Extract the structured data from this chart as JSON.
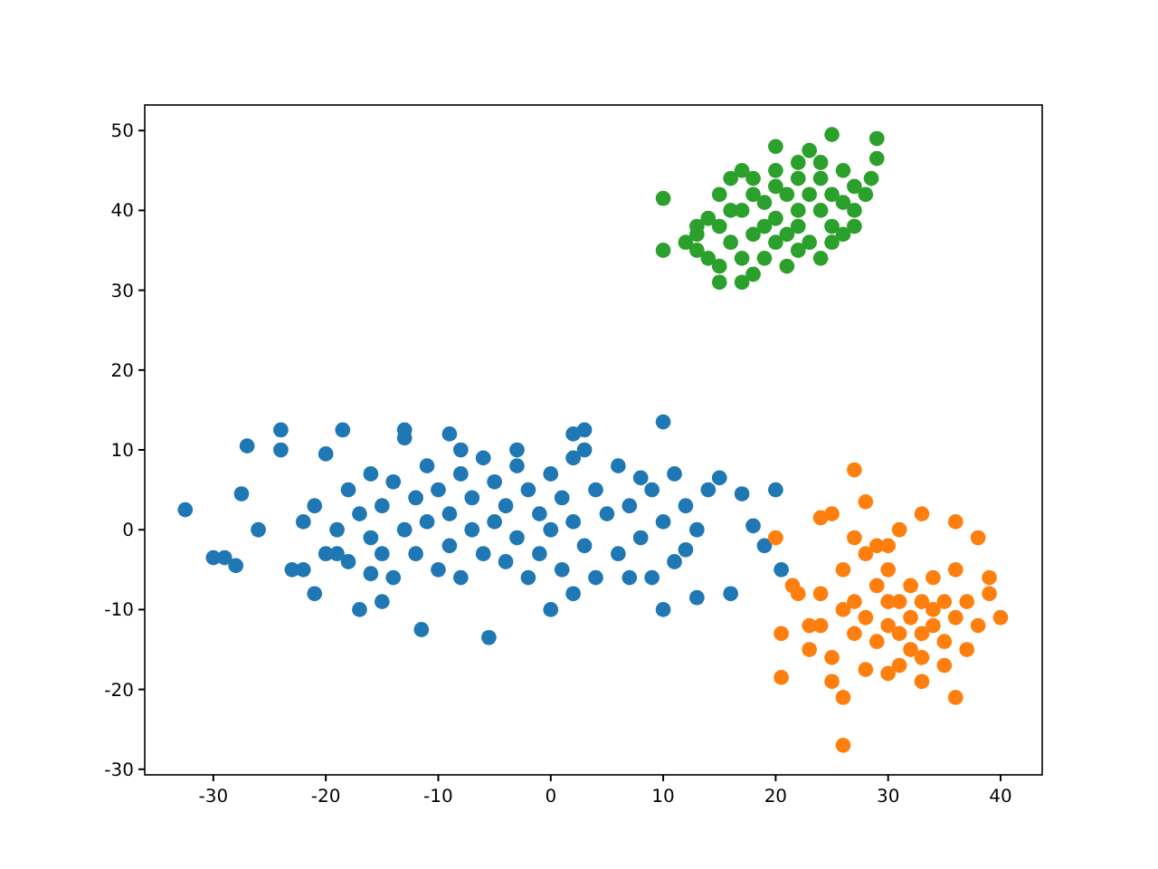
{
  "chart_data": {
    "type": "scatter",
    "xlim": [
      -36.1,
      43.7
    ],
    "ylim": [
      -30.7,
      53.2
    ],
    "xticks": [
      -30,
      -20,
      -10,
      0,
      10,
      20,
      30,
      40
    ],
    "yticks": [
      -30,
      -20,
      -10,
      0,
      10,
      20,
      30,
      40,
      50
    ],
    "marker": "circle",
    "grid": false,
    "series": [
      {
        "color": "#1f77b4",
        "x": [
          -32.5,
          -30,
          -29,
          -28,
          -27.5,
          -27,
          -26,
          -24,
          -24,
          -23,
          -22,
          -21,
          -20,
          -19,
          -18.5,
          -17,
          -16,
          -15,
          -13,
          -13,
          -11.5,
          -9,
          -5.5,
          0,
          2,
          3,
          2,
          10,
          10,
          13,
          16,
          15,
          17,
          18,
          19,
          20,
          20.5,
          14,
          12,
          8,
          9,
          -18,
          -17,
          -16,
          -15,
          -14,
          -13,
          -12,
          -12,
          -11,
          -11,
          -10,
          -10,
          -9,
          -9,
          -8,
          -8,
          -7,
          -7,
          -6,
          -6,
          -5,
          -5,
          -4,
          -4,
          -3,
          -3,
          -2,
          -2,
          -1,
          -1,
          0,
          0,
          1,
          1,
          2,
          2,
          3,
          4,
          4,
          5,
          6,
          6,
          7,
          8,
          9,
          10,
          11,
          12,
          -19,
          -20,
          -21,
          -16,
          -14,
          -8,
          -3,
          3,
          7,
          -15,
          11,
          13,
          -22,
          -18
        ],
        "values": [
          2.5,
          -3.5,
          -3.5,
          -4.5,
          4.5,
          10.5,
          0,
          12.5,
          10,
          -5,
          -5,
          -8,
          9.5,
          -3,
          12.5,
          -10,
          -5.5,
          -9,
          12.5,
          11.5,
          -12.5,
          12,
          -13.5,
          -10,
          -8,
          12.5,
          12,
          13.5,
          -10,
          -8.5,
          -8,
          6.5,
          4.5,
          0.5,
          -2,
          5,
          -5,
          5,
          -2.5,
          6.5,
          -6,
          5,
          2,
          -1,
          3,
          6,
          0,
          -3,
          4,
          8,
          1,
          -5,
          5,
          2,
          -2,
          7,
          -6,
          4,
          0,
          -3,
          9,
          6,
          1,
          -4,
          3,
          8,
          -1,
          5,
          -6,
          2,
          -3,
          7,
          0,
          4,
          -5,
          1,
          9,
          -2,
          5,
          -6,
          2,
          -3,
          8,
          3,
          -1,
          5,
          1,
          -4,
          3,
          0,
          -3,
          3,
          7,
          -6,
          10,
          10,
          10,
          -6,
          -3,
          7,
          0,
          1,
          -4
        ]
      },
      {
        "color": "#ff7f0e",
        "x": [
          20,
          20.5,
          20.5,
          26,
          27,
          28,
          24,
          25,
          31,
          33,
          36,
          38,
          39,
          40,
          39,
          37,
          36,
          33,
          30,
          28,
          25,
          25,
          26,
          22,
          21.5,
          23,
          24,
          26,
          27,
          28,
          29,
          30,
          31,
          32,
          33,
          34,
          35,
          32,
          31,
          30,
          33,
          34,
          35,
          36,
          37,
          38,
          29,
          28,
          27,
          26,
          23,
          24,
          30,
          32,
          34,
          36,
          31,
          33,
          35,
          29,
          27,
          30
        ],
        "values": [
          -1,
          -13,
          -18.5,
          -27,
          7.5,
          3.5,
          1.5,
          2,
          0,
          2,
          1,
          -1,
          -6,
          -11,
          -8,
          -15,
          -21,
          -19,
          -18,
          -17.5,
          -16,
          -19,
          -21,
          -8,
          -7,
          -12,
          -8,
          -5,
          -9,
          -3,
          -7,
          -5,
          -9,
          -11,
          -13,
          -10,
          -14,
          -15,
          -13,
          -12,
          -16,
          -12,
          -9,
          -11,
          -9,
          -12,
          -14,
          -11,
          -13,
          -10,
          -15,
          -12,
          -9,
          -7,
          -6,
          -5,
          -17,
          -9,
          -17,
          -2,
          -1,
          -2
        ]
      },
      {
        "color": "#2ca02c",
        "x": [
          10,
          10,
          15,
          17,
          18,
          21,
          24,
          28,
          28.5,
          29,
          29,
          25,
          23,
          20,
          17,
          14,
          13,
          15,
          16,
          18,
          20,
          22,
          24,
          26,
          27,
          27,
          26,
          25,
          23,
          22,
          20,
          19,
          17,
          16,
          14,
          13,
          15,
          17,
          19,
          21,
          23,
          25,
          24,
          22,
          20,
          18,
          16,
          18,
          20,
          22,
          24,
          26,
          21,
          19,
          13,
          15,
          22,
          25,
          27,
          12
        ],
        "values": [
          41.5,
          35,
          31,
          31,
          32,
          33,
          34,
          42,
          44,
          49,
          46.5,
          49.5,
          47.5,
          48,
          45,
          39,
          37,
          42,
          44,
          44,
          45,
          46,
          46,
          45,
          43,
          40,
          37,
          38,
          36,
          38,
          36,
          34,
          34,
          36,
          34,
          38,
          38,
          40,
          41,
          42,
          42,
          42,
          40,
          40,
          39,
          37,
          40,
          42,
          43,
          44,
          44,
          41,
          37,
          38,
          35,
          33,
          35,
          36,
          38,
          36
        ]
      }
    ]
  }
}
